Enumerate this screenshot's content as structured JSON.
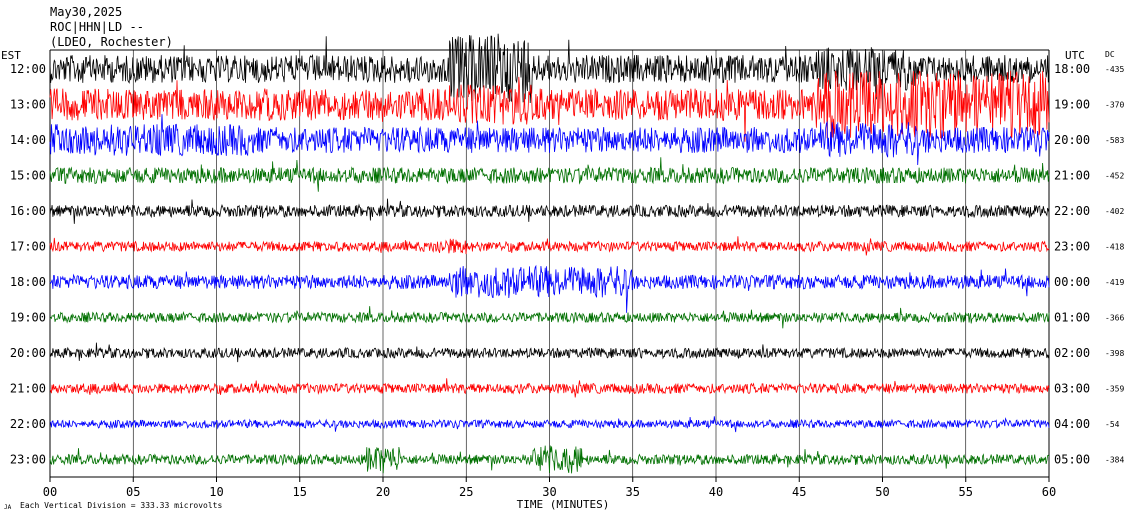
{
  "header": {
    "date": "May30,2025",
    "station": "ROC|HHN|LD --",
    "location": "(LDEO, Rochester)"
  },
  "footer": {
    "xlabel": "TIME (MINUTES)",
    "scale_note": "Each Vertical Division =  333.33 microvolts",
    "corner_mark": "JA"
  },
  "chart_data": {
    "type": "line",
    "title": "",
    "left_axis_label": "EST",
    "right_axis_label": "UTC",
    "dc_label": "DC",
    "xlabel": "TIME (MINUTES)",
    "xlim": [
      0,
      60
    ],
    "x_ticks": [
      "00",
      "05",
      "10",
      "15",
      "20",
      "25",
      "30",
      "35",
      "40",
      "45",
      "50",
      "55",
      "60"
    ],
    "vertical_grid_every_minutes": 5,
    "trace_colors": [
      "#000000",
      "#ff0000",
      "#0000ff",
      "#007000"
    ],
    "rows": [
      {
        "est": "12:00",
        "utc": "18:00",
        "dc": "-435",
        "color": "#000000",
        "amp": 14,
        "burst": [
          [
            24,
            29,
            34
          ],
          [
            46,
            52,
            22
          ]
        ]
      },
      {
        "est": "13:00",
        "utc": "19:00",
        "dc": "-370",
        "color": "#ff0000",
        "amp": 16,
        "burst": [
          [
            46,
            60,
            34
          ],
          [
            24,
            29,
            20
          ]
        ]
      },
      {
        "est": "14:00",
        "utc": "20:00",
        "dc": "-583",
        "color": "#0000ff",
        "amp": 13,
        "burst": [
          [
            0,
            12,
            16
          ],
          [
            46,
            52,
            18
          ]
        ]
      },
      {
        "est": "15:00",
        "utc": "21:00",
        "dc": "-452",
        "color": "#007000",
        "amp": 8,
        "burst": []
      },
      {
        "est": "16:00",
        "utc": "22:00",
        "dc": "-402",
        "color": "#000000",
        "amp": 6,
        "burst": []
      },
      {
        "est": "17:00",
        "utc": "23:00",
        "dc": "-418",
        "color": "#ff0000",
        "amp": 5,
        "burst": [
          [
            23,
            25,
            8
          ]
        ]
      },
      {
        "est": "18:00",
        "utc": "00:00",
        "dc": "-419",
        "color": "#0000ff",
        "amp": 7,
        "burst": [
          [
            24,
            35,
            16
          ]
        ]
      },
      {
        "est": "19:00",
        "utc": "01:00",
        "dc": "-366",
        "color": "#007000",
        "amp": 5,
        "burst": []
      },
      {
        "est": "20:00",
        "utc": "02:00",
        "dc": "-398",
        "color": "#000000",
        "amp": 5,
        "burst": []
      },
      {
        "est": "21:00",
        "utc": "03:00",
        "dc": "-359",
        "color": "#ff0000",
        "amp": 5,
        "burst": []
      },
      {
        "est": "22:00",
        "utc": "04:00",
        "dc": "-54",
        "color": "#0000ff",
        "amp": 4,
        "burst": []
      },
      {
        "est": "23:00",
        "utc": "05:00",
        "dc": "-384",
        "color": "#007000",
        "amp": 5,
        "burst": [
          [
            19,
            21,
            14
          ],
          [
            29,
            32,
            14
          ]
        ]
      }
    ]
  }
}
